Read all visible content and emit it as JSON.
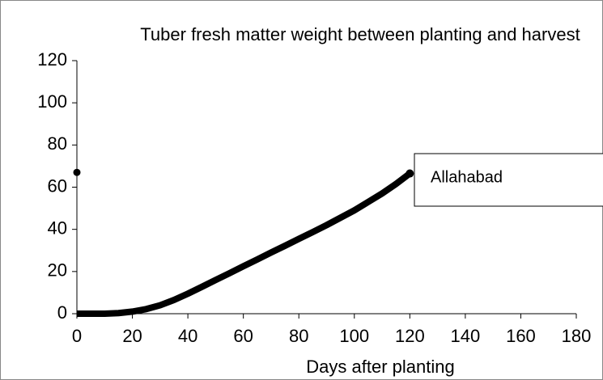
{
  "chart_data": {
    "type": "line",
    "title": "Tuber fresh matter weight between planting and harvest",
    "xlabel": "Days after planting",
    "xlim": [
      0,
      180
    ],
    "xticks": [
      0,
      20,
      40,
      60,
      80,
      100,
      120,
      140,
      160,
      180
    ],
    "ylim": [
      0,
      120
    ],
    "yticks": [
      0,
      20,
      40,
      60,
      80,
      100,
      120
    ],
    "grid": false,
    "series": [
      {
        "name": "Allahabad",
        "color": "#000000",
        "x": [
          0,
          5,
          10,
          15,
          20,
          25,
          30,
          35,
          40,
          45,
          50,
          55,
          60,
          65,
          70,
          75,
          80,
          85,
          90,
          95,
          100,
          105,
          110,
          115,
          120
        ],
        "values": [
          0,
          0,
          0,
          0.3,
          1,
          2.2,
          4,
          6.5,
          9.5,
          12.7,
          16,
          19.2,
          22.5,
          25.7,
          29,
          32.2,
          35.5,
          38.7,
          42,
          45.5,
          49,
          53,
          57,
          61.5,
          66.5
        ]
      },
      {
        "color": "#000000",
        "x": [
          0
        ],
        "values": [
          67
        ]
      }
    ]
  }
}
